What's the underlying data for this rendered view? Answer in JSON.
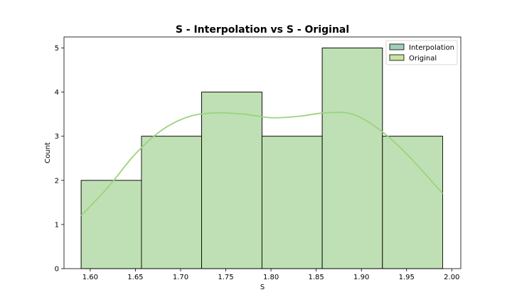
{
  "chart_data": {
    "type": "bar",
    "title": "S - Interpolation vs S - Original",
    "xlabel": "S",
    "ylabel": "Count",
    "xlim": [
      1.571,
      2.01
    ],
    "ylim": [
      0,
      5.25
    ],
    "xticks": [
      "1.60",
      "1.65",
      "1.70",
      "1.75",
      "1.80",
      "1.85",
      "1.90",
      "1.95",
      "2.00"
    ],
    "yticks": [
      "0",
      "1",
      "2",
      "3",
      "4",
      "5"
    ],
    "bin_edges": [
      1.59,
      1.6567,
      1.7233,
      1.79,
      1.8567,
      1.9233,
      1.99
    ],
    "series": [
      {
        "name": "Interpolation",
        "values": [
          2,
          3,
          4,
          3,
          5,
          3
        ],
        "color": "#9fcfb7"
      },
      {
        "name": "Original",
        "values": [
          2,
          3,
          4,
          3,
          5,
          3
        ],
        "color": "#c6e3a3"
      }
    ],
    "kde": {
      "color": "#9cd37e",
      "x": [
        1.59,
        1.62,
        1.65,
        1.68,
        1.71,
        1.74,
        1.77,
        1.8,
        1.83,
        1.86,
        1.89,
        1.92,
        1.95,
        1.99
      ],
      "y": [
        1.2,
        1.85,
        2.6,
        3.15,
        3.45,
        3.53,
        3.5,
        3.42,
        3.45,
        3.53,
        3.5,
        3.15,
        2.6,
        1.7
      ]
    },
    "legend_position": "upper right",
    "grid": false
  }
}
